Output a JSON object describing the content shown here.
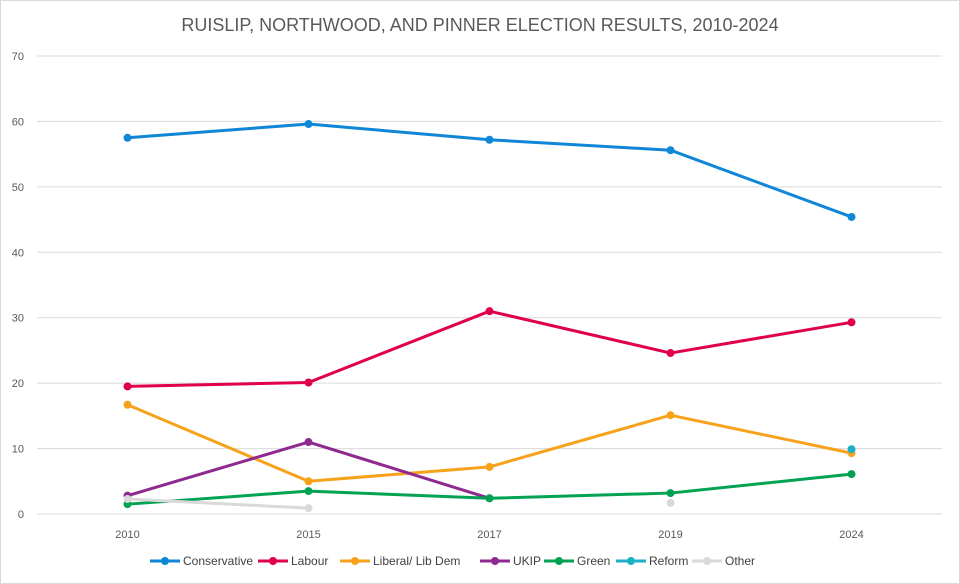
{
  "chart_data": {
    "type": "line",
    "title": "RUISLIP, NORTHWOOD, AND PINNER ELECTION RESULTS, 2010-2024",
    "categories": [
      "2010",
      "2015",
      "2017",
      "2019",
      "2024"
    ],
    "ylim": [
      0,
      70
    ],
    "yticks": [
      0,
      10,
      20,
      30,
      40,
      50,
      60,
      70
    ],
    "grid": true,
    "legend": "bottom",
    "series": [
      {
        "name": "Conservative",
        "color": "#0F86D6",
        "values": [
          57.5,
          59.6,
          57.2,
          55.6,
          45.4
        ]
      },
      {
        "name": "Labour",
        "color": "#E0004A",
        "values": [
          19.5,
          20.1,
          31.0,
          24.6,
          29.3
        ]
      },
      {
        "name": "Liberal/ Lib  Dem",
        "color": "#F7A21B",
        "values": [
          16.7,
          5.0,
          7.2,
          15.1,
          9.3
        ]
      },
      {
        "name": "UKIP",
        "color": "#8E2A8F",
        "values": [
          2.8,
          11.0,
          2.4,
          null,
          null
        ]
      },
      {
        "name": "Green",
        "color": "#01A353",
        "values": [
          1.5,
          3.5,
          2.4,
          3.2,
          6.1
        ]
      },
      {
        "name": "Reform",
        "color": "#1AB0C8",
        "values": [
          null,
          null,
          null,
          null,
          9.9
        ]
      },
      {
        "name": "Other",
        "color": "#D9D9D9",
        "values": [
          2.3,
          0.9,
          null,
          1.7,
          null
        ]
      }
    ]
  }
}
